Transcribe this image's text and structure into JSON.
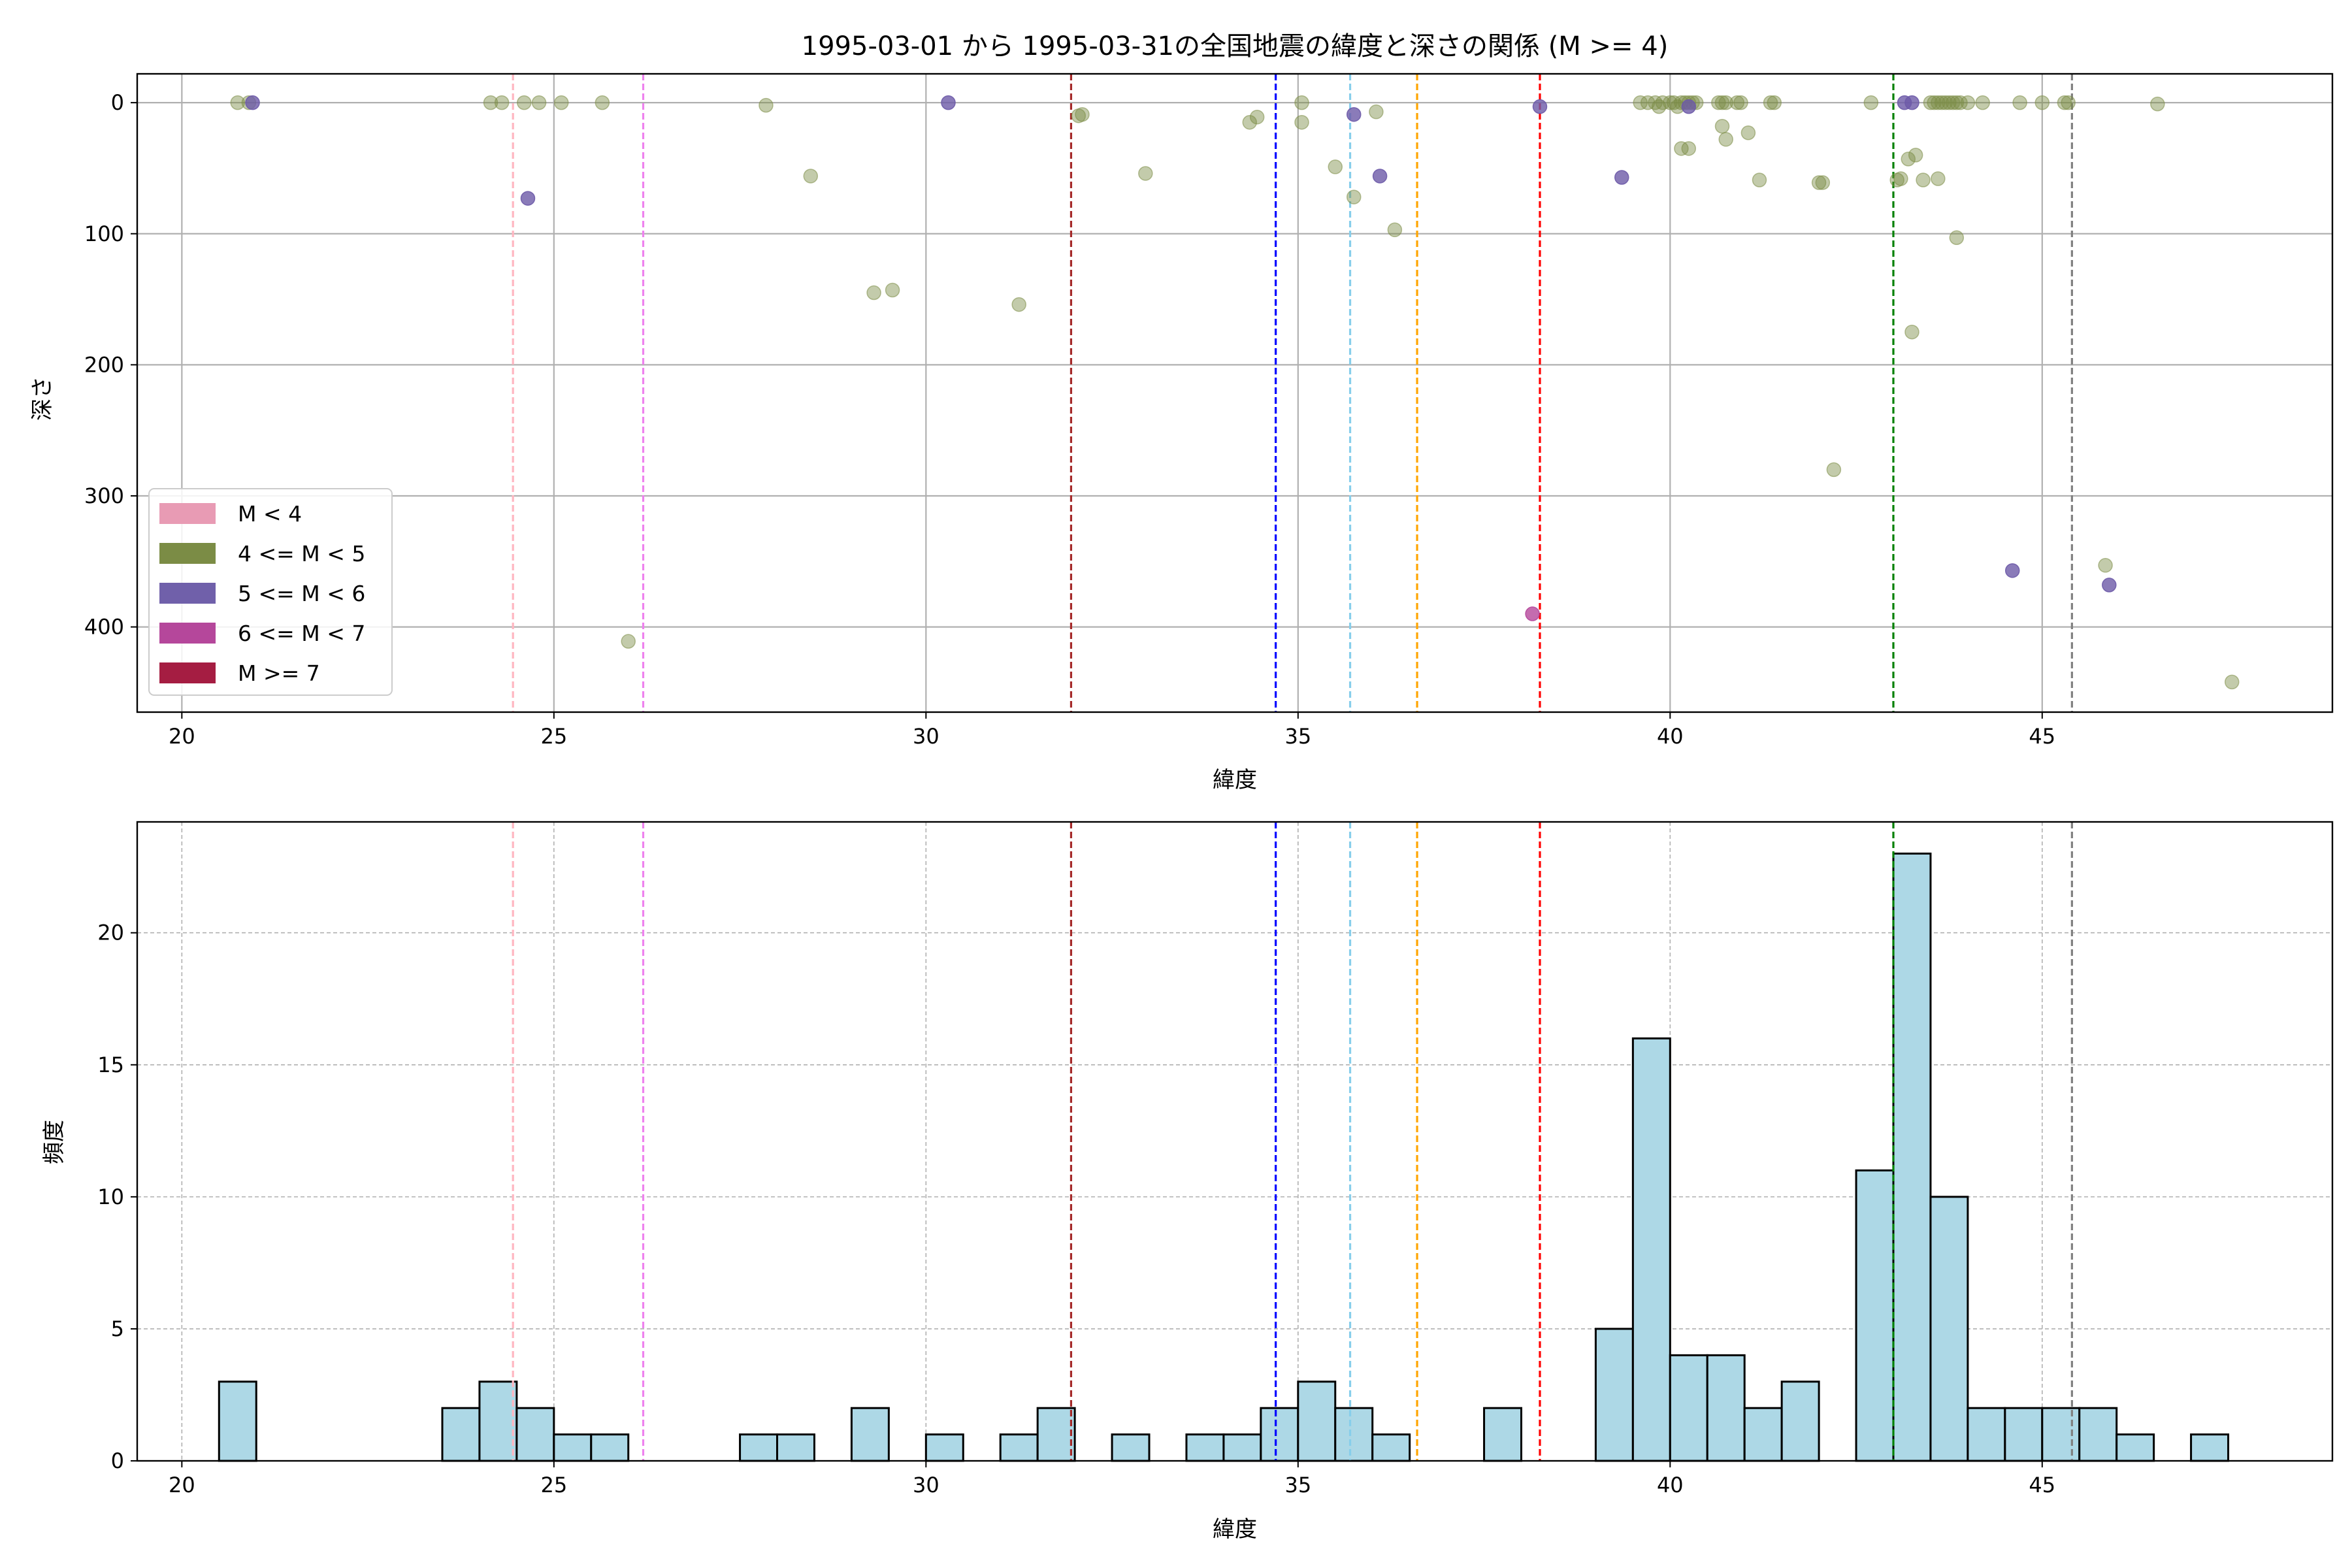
{
  "colors": {
    "scatter_mag_4_5": "#7b8c45",
    "scatter_mag_5_6": "#6d5aa8",
    "scatter_mag_6_7": "#b5479b",
    "bar_fill": "#add8e6",
    "bar_edge": "#000000",
    "grid": "#b0b0b0"
  },
  "chart_data": [
    {
      "type": "scatter",
      "title": "1995-03-01 から 1995-03-31の全国地震の緯度と深さの関係 (M >= 4)",
      "xlabel": "緯度",
      "ylabel": "深さ",
      "xlim": [
        19.4,
        48.9
      ],
      "ylim": [
        465,
        -22
      ],
      "y_inverted": true,
      "xticks": [
        20,
        25,
        30,
        35,
        40,
        45
      ],
      "yticks": [
        0,
        100,
        200,
        300,
        400
      ],
      "grid": true,
      "legend_placement": "lower-left",
      "legend": [
        {
          "label": "M < 4",
          "color": "#e89bb4"
        },
        {
          "label": "4 <= M < 5",
          "color": "#7b8c45"
        },
        {
          "label": "5 <= M < 6",
          "color": "#7060aa"
        },
        {
          "label": "6 <= M < 7",
          "color": "#b5479b"
        },
        {
          "label": "M >= 7",
          "color": "#a51d42"
        }
      ],
      "vlines": [
        {
          "x": 24.45,
          "color": "#ffb6c1"
        },
        {
          "x": 26.2,
          "color": "#ee82ee"
        },
        {
          "x": 31.95,
          "color": "#a52a2a"
        },
        {
          "x": 34.7,
          "color": "#0000ff"
        },
        {
          "x": 35.7,
          "color": "#87ceeb"
        },
        {
          "x": 36.6,
          "color": "#ffa500"
        },
        {
          "x": 38.25,
          "color": "#ff0000"
        },
        {
          "x": 43.0,
          "color": "#008000"
        },
        {
          "x": 45.4,
          "color": "#808080"
        }
      ],
      "series": [
        {
          "category": "4 <= M < 5",
          "points": [
            [
              20.75,
              0
            ],
            [
              20.9,
              0
            ],
            [
              24.15,
              0
            ],
            [
              24.3,
              0
            ],
            [
              24.6,
              0
            ],
            [
              24.8,
              0
            ],
            [
              25.1,
              0
            ],
            [
              25.65,
              0
            ],
            [
              27.85,
              2
            ],
            [
              28.45,
              56
            ],
            [
              29.3,
              145
            ],
            [
              29.55,
              143
            ],
            [
              31.25,
              154
            ],
            [
              32.05,
              10
            ],
            [
              32.1,
              9
            ],
            [
              32.95,
              54
            ],
            [
              34.35,
              15
            ],
            [
              34.45,
              11
            ],
            [
              35.05,
              0
            ],
            [
              35.05,
              15
            ],
            [
              35.5,
              49
            ],
            [
              35.75,
              72
            ],
            [
              36.05,
              7
            ],
            [
              36.3,
              97
            ],
            [
              26.0,
              411
            ],
            [
              39.6,
              0
            ],
            [
              39.7,
              0
            ],
            [
              39.8,
              0
            ],
            [
              39.85,
              3
            ],
            [
              39.9,
              0
            ],
            [
              40.0,
              0
            ],
            [
              40.05,
              0
            ],
            [
              40.1,
              3
            ],
            [
              40.15,
              0
            ],
            [
              40.2,
              0
            ],
            [
              40.25,
              0
            ],
            [
              40.3,
              0
            ],
            [
              40.35,
              0
            ],
            [
              40.15,
              35
            ],
            [
              40.25,
              35
            ],
            [
              40.65,
              0
            ],
            [
              40.7,
              0
            ],
            [
              40.75,
              0
            ],
            [
              40.9,
              0
            ],
            [
              40.95,
              0
            ],
            [
              40.7,
              18
            ],
            [
              40.75,
              28
            ],
            [
              41.05,
              23
            ],
            [
              41.2,
              59
            ],
            [
              41.35,
              0
            ],
            [
              41.4,
              0
            ],
            [
              42.0,
              61
            ],
            [
              42.05,
              61
            ],
            [
              42.2,
              280
            ],
            [
              42.7,
              0
            ],
            [
              43.05,
              59
            ],
            [
              43.1,
              58
            ],
            [
              43.2,
              43
            ],
            [
              43.3,
              40
            ],
            [
              43.25,
              175
            ],
            [
              43.4,
              59
            ],
            [
              43.5,
              0
            ],
            [
              43.55,
              0
            ],
            [
              43.6,
              0
            ],
            [
              43.65,
              0
            ],
            [
              43.7,
              0
            ],
            [
              43.75,
              0
            ],
            [
              43.8,
              0
            ],
            [
              43.85,
              0
            ],
            [
              43.9,
              0
            ],
            [
              43.6,
              58
            ],
            [
              43.85,
              103
            ],
            [
              44.0,
              0
            ],
            [
              44.2,
              0
            ],
            [
              44.7,
              0
            ],
            [
              45.0,
              0
            ],
            [
              45.3,
              0
            ],
            [
              45.35,
              0
            ],
            [
              45.85,
              353
            ],
            [
              46.55,
              1
            ],
            [
              47.55,
              442
            ]
          ]
        },
        {
          "category": "5 <= M < 6",
          "points": [
            [
              20.95,
              0
            ],
            [
              24.65,
              73
            ],
            [
              30.3,
              0
            ],
            [
              35.75,
              9
            ],
            [
              36.1,
              56
            ],
            [
              38.25,
              3
            ],
            [
              39.35,
              57
            ],
            [
              40.25,
              3
            ],
            [
              43.15,
              0
            ],
            [
              43.25,
              0
            ],
            [
              44.6,
              357
            ],
            [
              45.9,
              368
            ]
          ]
        },
        {
          "category": "6 <= M < 7",
          "points": [
            [
              38.15,
              390
            ]
          ]
        }
      ]
    },
    {
      "type": "bar",
      "title": "",
      "xlabel": "緯度",
      "ylabel": "頻度",
      "xlim": [
        19.4,
        48.9
      ],
      "ylim": [
        0,
        24.2
      ],
      "xticks": [
        20,
        25,
        30,
        35,
        40,
        45
      ],
      "yticks": [
        0,
        5,
        10,
        15,
        20
      ],
      "grid": true,
      "bin_width": 0.5,
      "bins": [
        {
          "x": 20.75,
          "count": 3
        },
        {
          "x": 23.75,
          "count": 2
        },
        {
          "x": 24.25,
          "count": 3
        },
        {
          "x": 24.75,
          "count": 2
        },
        {
          "x": 25.25,
          "count": 1
        },
        {
          "x": 25.75,
          "count": 1
        },
        {
          "x": 27.75,
          "count": 1
        },
        {
          "x": 28.25,
          "count": 1
        },
        {
          "x": 29.25,
          "count": 2
        },
        {
          "x": 30.25,
          "count": 1
        },
        {
          "x": 31.25,
          "count": 1
        },
        {
          "x": 31.75,
          "count": 2
        },
        {
          "x": 32.75,
          "count": 1
        },
        {
          "x": 33.75,
          "count": 1
        },
        {
          "x": 34.25,
          "count": 1
        },
        {
          "x": 34.75,
          "count": 2
        },
        {
          "x": 35.25,
          "count": 3
        },
        {
          "x": 35.75,
          "count": 2
        },
        {
          "x": 36.25,
          "count": 1
        },
        {
          "x": 37.75,
          "count": 2
        },
        {
          "x": 39.25,
          "count": 5
        },
        {
          "x": 39.75,
          "count": 16
        },
        {
          "x": 40.25,
          "count": 4
        },
        {
          "x": 40.75,
          "count": 4
        },
        {
          "x": 41.25,
          "count": 2
        },
        {
          "x": 41.75,
          "count": 3
        },
        {
          "x": 42.75,
          "count": 11
        },
        {
          "x": 43.25,
          "count": 23
        },
        {
          "x": 43.75,
          "count": 10
        },
        {
          "x": 44.25,
          "count": 2
        },
        {
          "x": 44.75,
          "count": 2
        },
        {
          "x": 45.25,
          "count": 2
        },
        {
          "x": 45.75,
          "count": 2
        },
        {
          "x": 46.25,
          "count": 1
        },
        {
          "x": 47.25,
          "count": 1
        }
      ],
      "vlines": [
        {
          "x": 24.45,
          "color": "#ffb6c1"
        },
        {
          "x": 26.2,
          "color": "#ee82ee"
        },
        {
          "x": 31.95,
          "color": "#a52a2a"
        },
        {
          "x": 34.7,
          "color": "#0000ff"
        },
        {
          "x": 35.7,
          "color": "#87ceeb"
        },
        {
          "x": 36.6,
          "color": "#ffa500"
        },
        {
          "x": 38.25,
          "color": "#ff0000"
        },
        {
          "x": 43.0,
          "color": "#008000"
        },
        {
          "x": 45.4,
          "color": "#808080"
        }
      ]
    }
  ]
}
